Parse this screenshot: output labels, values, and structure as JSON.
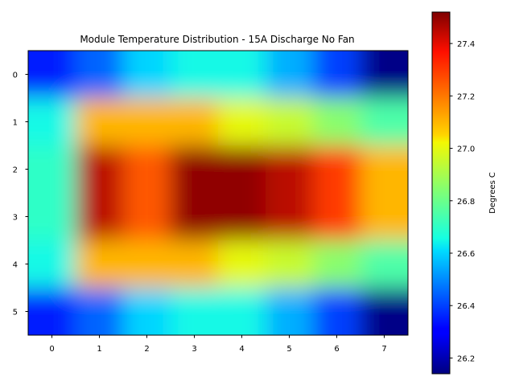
{
  "chart_data": {
    "type": "heatmap",
    "title": "Module Temperature Distribution - 15A Discharge No Fan",
    "x_ticks": [
      "0",
      "1",
      "2",
      "3",
      "4",
      "5",
      "6",
      "7"
    ],
    "y_ticks": [
      "0",
      "1",
      "2",
      "3",
      "4",
      "5"
    ],
    "values": [
      [
        26.35,
        26.45,
        26.6,
        26.65,
        26.65,
        26.55,
        26.4,
        26.15
      ],
      [
        26.65,
        27.1,
        27.1,
        27.1,
        27.0,
        26.95,
        26.85,
        26.75
      ],
      [
        26.7,
        27.45,
        27.25,
        27.5,
        27.5,
        27.45,
        27.3,
        27.1
      ],
      [
        26.7,
        27.45,
        27.25,
        27.5,
        27.5,
        27.45,
        27.3,
        27.1
      ],
      [
        26.65,
        27.1,
        27.1,
        27.1,
        27.0,
        26.95,
        26.85,
        26.75
      ],
      [
        26.35,
        26.45,
        26.6,
        26.65,
        26.65,
        26.55,
        26.4,
        26.15
      ]
    ],
    "colorbar": {
      "label": "Degrees C",
      "min": 26.14,
      "max": 27.52,
      "ticks": [
        "26.2",
        "26.4",
        "26.6",
        "26.8",
        "27.0",
        "27.2",
        "27.4"
      ]
    },
    "colormap": "jet",
    "interpolation": "bicubic",
    "grid": false
  }
}
